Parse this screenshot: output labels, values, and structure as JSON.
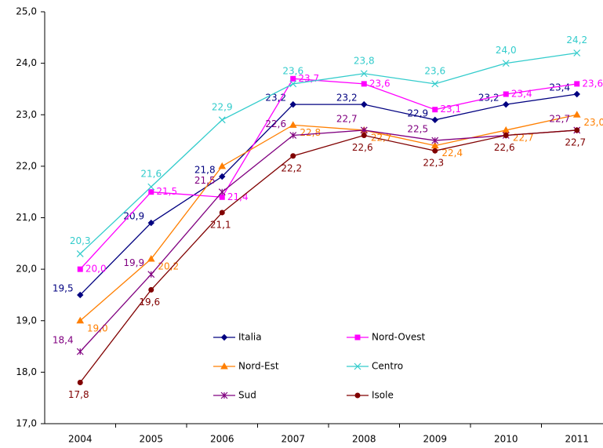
{
  "chart_data": {
    "type": "line",
    "categories": [
      "2004",
      "2005",
      "2006",
      "2007",
      "2008",
      "2009",
      "2010",
      "2011"
    ],
    "ylim": [
      17,
      25
    ],
    "yticks": [
      {
        "value": 17,
        "label": "17,0"
      },
      {
        "value": 18,
        "label": "18,0"
      },
      {
        "value": 19,
        "label": "19,0"
      },
      {
        "value": 20,
        "label": "20,0"
      },
      {
        "value": 21,
        "label": "21,0"
      },
      {
        "value": 22,
        "label": "22,0"
      },
      {
        "value": 23,
        "label": "23,0"
      },
      {
        "value": 24,
        "label": "24,0"
      },
      {
        "value": 25,
        "label": "25,0"
      }
    ],
    "grid": false,
    "legend": "inside",
    "series": [
      {
        "name": "Italia",
        "color": "#000080",
        "marker": "diamond",
        "values": [
          19.5,
          20.9,
          21.8,
          23.2,
          23.2,
          22.9,
          23.2,
          23.4
        ],
        "value_labels": [
          "19,5",
          "20,9",
          "21,8",
          "23,2",
          "23,2",
          "22,9",
          "23,2",
          "23,4"
        ]
      },
      {
        "name": "Nord-Ovest",
        "color": "#ff00ff",
        "marker": "square",
        "values": [
          20.0,
          21.5,
          21.4,
          23.7,
          23.6,
          23.1,
          23.4,
          23.6
        ],
        "value_labels": [
          "20,0",
          "21,5",
          "21,4",
          "23,7",
          "23,6",
          "23,1",
          "23,4",
          "23,6"
        ]
      },
      {
        "name": "Nord-Est",
        "color": "#ff7f00",
        "marker": "triangle",
        "values": [
          19.0,
          20.2,
          22.0,
          22.8,
          22.7,
          22.4,
          22.7,
          23.0
        ],
        "value_labels": [
          "19,0",
          "20,2",
          null,
          "22,8",
          "22,7",
          "22,4",
          "22,7",
          "23,0"
        ]
      },
      {
        "name": "Centro",
        "color": "#33cccc",
        "marker": "x",
        "values": [
          20.3,
          21.6,
          22.9,
          23.6,
          23.8,
          23.6,
          24.0,
          24.2
        ],
        "value_labels": [
          "20,3",
          "21,6",
          "22,9",
          "23,6",
          "23,8",
          "23,6",
          "24,0",
          "24,2"
        ]
      },
      {
        "name": "Sud",
        "color": "#800080",
        "marker": "star",
        "values": [
          18.4,
          19.9,
          21.5,
          22.6,
          22.7,
          22.5,
          22.6,
          22.7
        ],
        "value_labels": [
          "18,4",
          "19,9",
          "21,5",
          "22,6",
          "22,7",
          "22,5",
          null,
          "22,7"
        ]
      },
      {
        "name": "Isole",
        "color": "#800000",
        "marker": "circle",
        "values": [
          17.8,
          19.6,
          21.1,
          22.2,
          22.6,
          22.3,
          22.6,
          22.7
        ],
        "value_labels": [
          "17,8",
          "19,6",
          "21,1",
          "22,2",
          "22,6",
          "22,3",
          "22,6",
          "22,7"
        ]
      }
    ]
  }
}
